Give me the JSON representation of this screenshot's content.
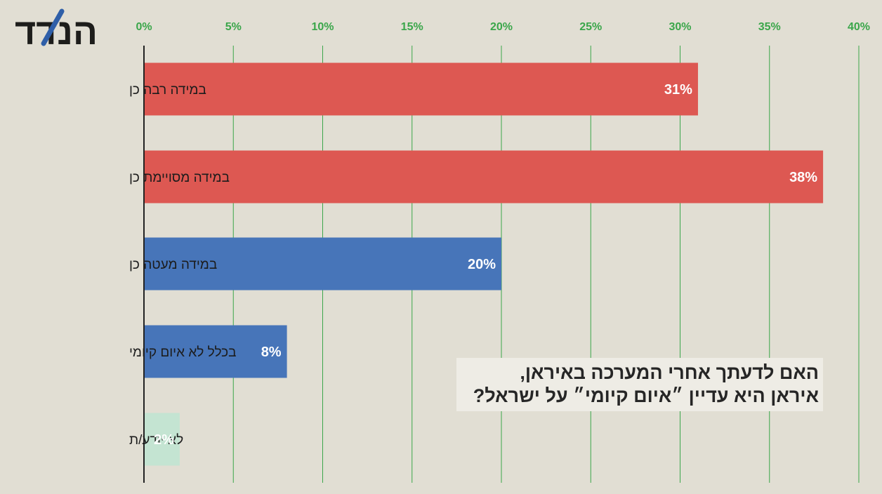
{
  "logo": {
    "text": "הנדד",
    "accent_color": "#2f5fa8"
  },
  "question": {
    "line1": "האם לדעתך אחרי המערכה באיראן,",
    "line2": "איראן היא עדיין ״איום קיומי״ על ישראל?"
  },
  "colors": {
    "background": "#e1ded3",
    "red": "#dd5852",
    "blue": "#4775b9",
    "light_green": "#c4e4d2",
    "gridline": "#3aa64a",
    "tick_text": "#3aa64a"
  },
  "chart_data": {
    "type": "bar",
    "orientation": "horizontal",
    "categories": [
      "במידה רבה כן",
      "במידה מסויימת כן",
      "במידה מעטה כן",
      "בכלל לא איום קיומי",
      "לא יודע/ת"
    ],
    "values": [
      31,
      38,
      20,
      8,
      2
    ],
    "data_labels": [
      "31%",
      "38%",
      "20%",
      "8%",
      "2%"
    ],
    "bar_colors": [
      "#dd5852",
      "#dd5852",
      "#4775b9",
      "#4775b9",
      "#c4e4d2"
    ],
    "x_ticks": [
      0,
      5,
      10,
      15,
      20,
      25,
      30,
      35,
      40
    ],
    "x_tick_labels": [
      "0%",
      "5%",
      "10%",
      "15%",
      "20%",
      "25%",
      "30%",
      "35%",
      "40%"
    ],
    "xlim": [
      0,
      40
    ],
    "x_axis_position": "top",
    "grid": true,
    "title": "",
    "xlabel": "",
    "ylabel": ""
  }
}
